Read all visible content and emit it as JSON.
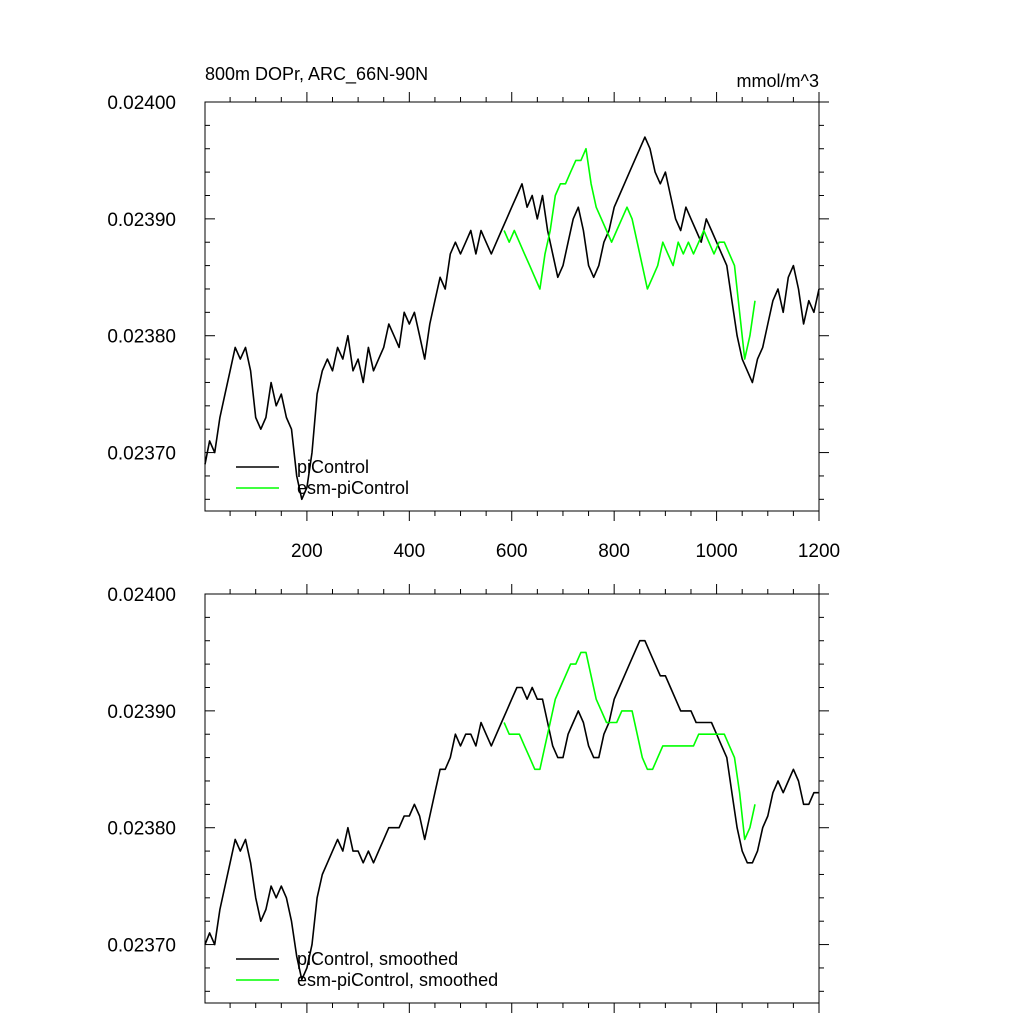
{
  "chart_data": [
    {
      "type": "line",
      "title": "800m DOPr, ARC_66N-90N",
      "units": "mmol/m^3",
      "xlim": [
        1,
        1200
      ],
      "ylim": [
        0.02365,
        0.024
      ],
      "x_ticks": [
        200,
        400,
        600,
        800,
        1000,
        1200
      ],
      "y_ticks": [
        "0.02370",
        "0.02380",
        "0.02390",
        "0.02400"
      ],
      "grid": false,
      "legend_position": "bottom-left",
      "series": [
        {
          "name": "piControl",
          "color": "#000000",
          "x": [
            1,
            10,
            20,
            30,
            40,
            50,
            60,
            70,
            80,
            90,
            100,
            110,
            120,
            130,
            140,
            150,
            160,
            170,
            180,
            190,
            200,
            210,
            220,
            230,
            240,
            250,
            260,
            270,
            280,
            290,
            300,
            310,
            320,
            330,
            340,
            350,
            360,
            370,
            380,
            390,
            400,
            410,
            420,
            430,
            440,
            450,
            460,
            470,
            480,
            490,
            500,
            510,
            520,
            530,
            540,
            550,
            560,
            570,
            580,
            590,
            600,
            610,
            620,
            630,
            640,
            650,
            660,
            670,
            680,
            690,
            700,
            710,
            720,
            730,
            740,
            750,
            760,
            770,
            780,
            790,
            800,
            810,
            820,
            830,
            840,
            850,
            860,
            870,
            880,
            890,
            900,
            910,
            920,
            930,
            940,
            950,
            960,
            970,
            980,
            990,
            1000,
            1010,
            1020,
            1030,
            1040,
            1050,
            1060,
            1070,
            1080,
            1090,
            1100,
            1110,
            1120,
            1130,
            1140,
            1150,
            1160,
            1170,
            1180,
            1190,
            1200
          ],
          "values": [
            0.02369,
            0.02371,
            0.0237,
            0.02373,
            0.02375,
            0.02377,
            0.02379,
            0.02378,
            0.02379,
            0.02377,
            0.02373,
            0.02372,
            0.02373,
            0.02376,
            0.02374,
            0.02375,
            0.02373,
            0.02372,
            0.02368,
            0.02366,
            0.02367,
            0.0237,
            0.02375,
            0.02377,
            0.02378,
            0.02377,
            0.02379,
            0.02378,
            0.0238,
            0.02377,
            0.02378,
            0.02376,
            0.02379,
            0.02377,
            0.02378,
            0.02379,
            0.02381,
            0.0238,
            0.02379,
            0.02382,
            0.02381,
            0.02382,
            0.0238,
            0.02378,
            0.02381,
            0.02383,
            0.02385,
            0.02384,
            0.02387,
            0.02388,
            0.02387,
            0.02388,
            0.02389,
            0.02387,
            0.02389,
            0.02388,
            0.02387,
            0.02388,
            0.02389,
            0.0239,
            0.02391,
            0.02392,
            0.02393,
            0.02391,
            0.02392,
            0.0239,
            0.02392,
            0.02389,
            0.02387,
            0.02385,
            0.02386,
            0.02388,
            0.0239,
            0.02391,
            0.02389,
            0.02386,
            0.02385,
            0.02386,
            0.02388,
            0.02389,
            0.02391,
            0.02392,
            0.02393,
            0.02394,
            0.02395,
            0.02396,
            0.02397,
            0.02396,
            0.02394,
            0.02393,
            0.02394,
            0.02392,
            0.0239,
            0.02389,
            0.02391,
            0.0239,
            0.02389,
            0.02388,
            0.0239,
            0.02389,
            0.02388,
            0.02387,
            0.02386,
            0.02383,
            0.0238,
            0.02378,
            0.02377,
            0.02376,
            0.02378,
            0.02379,
            0.02381,
            0.02383,
            0.02384,
            0.02382,
            0.02385,
            0.02386,
            0.02384,
            0.02381,
            0.02383,
            0.02382,
            0.02384
          ]
        },
        {
          "name": "esm-piControl",
          "color": "#00ff00",
          "x": [
            585,
            595,
            605,
            615,
            625,
            635,
            645,
            655,
            665,
            675,
            685,
            695,
            705,
            715,
            725,
            735,
            745,
            755,
            765,
            775,
            785,
            795,
            805,
            815,
            825,
            835,
            845,
            855,
            865,
            875,
            885,
            895,
            905,
            915,
            925,
            935,
            945,
            955,
            965,
            975,
            985,
            995,
            1005,
            1015,
            1025,
            1035,
            1045,
            1055,
            1065,
            1075
          ],
          "values": [
            0.02389,
            0.02388,
            0.02389,
            0.02388,
            0.02387,
            0.02386,
            0.02385,
            0.02384,
            0.02387,
            0.02389,
            0.02392,
            0.02393,
            0.02393,
            0.02394,
            0.02395,
            0.02395,
            0.02396,
            0.02393,
            0.02391,
            0.0239,
            0.02389,
            0.02388,
            0.02389,
            0.0239,
            0.02391,
            0.0239,
            0.02388,
            0.02386,
            0.02384,
            0.02385,
            0.02386,
            0.02388,
            0.02387,
            0.02386,
            0.02388,
            0.02387,
            0.02388,
            0.02387,
            0.02388,
            0.02389,
            0.02388,
            0.02387,
            0.02388,
            0.02388,
            0.02387,
            0.02386,
            0.02382,
            0.02378,
            0.0238,
            0.02383
          ]
        }
      ]
    },
    {
      "type": "line",
      "xlim": [
        1,
        1200
      ],
      "ylim": [
        0.02365,
        0.024
      ],
      "y_ticks": [
        "0.02370",
        "0.02380",
        "0.02390",
        "0.02400"
      ],
      "grid": false,
      "legend_position": "bottom-left",
      "series": [
        {
          "name": "piControl, smoothed",
          "color": "#000000",
          "x": [
            1,
            10,
            20,
            30,
            40,
            50,
            60,
            70,
            80,
            90,
            100,
            110,
            120,
            130,
            140,
            150,
            160,
            170,
            180,
            190,
            200,
            210,
            220,
            230,
            240,
            250,
            260,
            270,
            280,
            290,
            300,
            310,
            320,
            330,
            340,
            350,
            360,
            370,
            380,
            390,
            400,
            410,
            420,
            430,
            440,
            450,
            460,
            470,
            480,
            490,
            500,
            510,
            520,
            530,
            540,
            550,
            560,
            570,
            580,
            590,
            600,
            610,
            620,
            630,
            640,
            650,
            660,
            670,
            680,
            690,
            700,
            710,
            720,
            730,
            740,
            750,
            760,
            770,
            780,
            790,
            800,
            810,
            820,
            830,
            840,
            850,
            860,
            870,
            880,
            890,
            900,
            910,
            920,
            930,
            940,
            950,
            960,
            970,
            980,
            990,
            1000,
            1010,
            1020,
            1030,
            1040,
            1050,
            1060,
            1070,
            1080,
            1090,
            1100,
            1110,
            1120,
            1130,
            1140,
            1150,
            1160,
            1170,
            1180,
            1190,
            1200
          ],
          "values": [
            0.0237,
            0.02371,
            0.0237,
            0.02373,
            0.02375,
            0.02377,
            0.02379,
            0.02378,
            0.02379,
            0.02377,
            0.02374,
            0.02372,
            0.02373,
            0.02375,
            0.02374,
            0.02375,
            0.02374,
            0.02372,
            0.02369,
            0.02367,
            0.02368,
            0.0237,
            0.02374,
            0.02376,
            0.02377,
            0.02378,
            0.02379,
            0.02378,
            0.0238,
            0.02378,
            0.02378,
            0.02377,
            0.02378,
            0.02377,
            0.02378,
            0.02379,
            0.0238,
            0.0238,
            0.0238,
            0.02381,
            0.02381,
            0.02382,
            0.02381,
            0.02379,
            0.02381,
            0.02383,
            0.02385,
            0.02385,
            0.02386,
            0.02388,
            0.02387,
            0.02388,
            0.02388,
            0.02387,
            0.02389,
            0.02388,
            0.02387,
            0.02388,
            0.02389,
            0.0239,
            0.02391,
            0.02392,
            0.02392,
            0.02391,
            0.02392,
            0.02391,
            0.02391,
            0.02389,
            0.02387,
            0.02386,
            0.02386,
            0.02388,
            0.02389,
            0.0239,
            0.02389,
            0.02387,
            0.02386,
            0.02386,
            0.02388,
            0.02389,
            0.02391,
            0.02392,
            0.02393,
            0.02394,
            0.02395,
            0.02396,
            0.02396,
            0.02395,
            0.02394,
            0.02393,
            0.02393,
            0.02392,
            0.02391,
            0.0239,
            0.0239,
            0.0239,
            0.02389,
            0.02389,
            0.02389,
            0.02389,
            0.02388,
            0.02387,
            0.02386,
            0.02383,
            0.0238,
            0.02378,
            0.02377,
            0.02377,
            0.02378,
            0.0238,
            0.02381,
            0.02383,
            0.02384,
            0.02383,
            0.02384,
            0.02385,
            0.02384,
            0.02382,
            0.02382,
            0.02383,
            0.02383
          ]
        },
        {
          "name": "esm-piControl, smoothed",
          "color": "#00ff00",
          "x": [
            585,
            595,
            605,
            615,
            625,
            635,
            645,
            655,
            665,
            675,
            685,
            695,
            705,
            715,
            725,
            735,
            745,
            755,
            765,
            775,
            785,
            795,
            805,
            815,
            825,
            835,
            845,
            855,
            865,
            875,
            885,
            895,
            905,
            915,
            925,
            935,
            945,
            955,
            965,
            975,
            985,
            995,
            1005,
            1015,
            1025,
            1035,
            1045,
            1055,
            1065,
            1075
          ],
          "values": [
            0.02389,
            0.02388,
            0.02388,
            0.02388,
            0.02387,
            0.02386,
            0.02385,
            0.02385,
            0.02387,
            0.02389,
            0.02391,
            0.02392,
            0.02393,
            0.02394,
            0.02394,
            0.02395,
            0.02395,
            0.02393,
            0.02391,
            0.0239,
            0.02389,
            0.02389,
            0.02389,
            0.0239,
            0.0239,
            0.0239,
            0.02388,
            0.02386,
            0.02385,
            0.02385,
            0.02386,
            0.02387,
            0.02387,
            0.02387,
            0.02387,
            0.02387,
            0.02387,
            0.02387,
            0.02388,
            0.02388,
            0.02388,
            0.02388,
            0.02388,
            0.02388,
            0.02387,
            0.02386,
            0.02383,
            0.02379,
            0.0238,
            0.02382
          ]
        }
      ]
    }
  ]
}
